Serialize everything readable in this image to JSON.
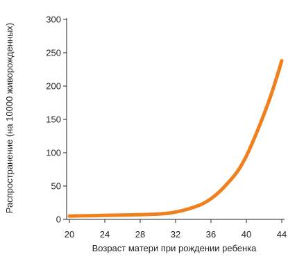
{
  "chart_data": {
    "type": "line",
    "title": "",
    "xlabel": "Возраст матери при рождении ребенка",
    "ylabel": "Распространение (на 10000 живорожденных)",
    "xlim": [
      20,
      44
    ],
    "ylim": [
      0,
      300
    ],
    "x_ticks": [
      "20",
      "24",
      "28",
      "32",
      "36",
      "40",
      "44"
    ],
    "y_ticks": [
      "0",
      "50",
      "100",
      "150",
      "200",
      "250",
      "300"
    ],
    "grid": false,
    "series": [
      {
        "color": "#F0801E",
        "x": [
          20,
          22,
          24,
          26,
          28,
          30,
          31,
          32,
          33,
          34,
          35,
          36,
          37,
          38,
          39,
          40,
          41,
          42,
          43,
          44
        ],
        "y": [
          5,
          5.5,
          6,
          6.5,
          7,
          8,
          9,
          11,
          14,
          18,
          23,
          31,
          42,
          56,
          72,
          95,
          125,
          158,
          195,
          238
        ]
      }
    ]
  }
}
